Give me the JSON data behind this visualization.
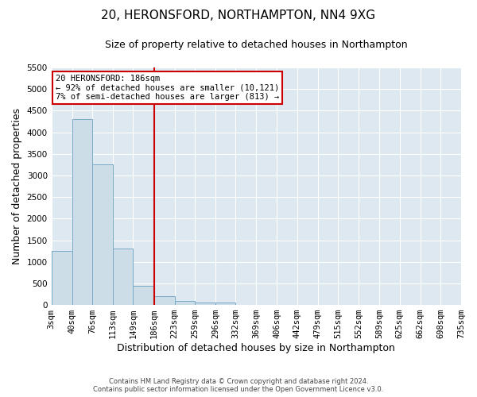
{
  "title": "20, HERONSFORD, NORTHAMPTON, NN4 9XG",
  "subtitle": "Size of property relative to detached houses in Northampton",
  "xlabel": "Distribution of detached houses by size in Northampton",
  "ylabel": "Number of detached properties",
  "footer_line1": "Contains HM Land Registry data © Crown copyright and database right 2024.",
  "footer_line2": "Contains public sector information licensed under the Open Government Licence v3.0.",
  "bin_edges": [
    3,
    40,
    76,
    113,
    149,
    186,
    223,
    259,
    296,
    332,
    369,
    406,
    442,
    479,
    515,
    552,
    589,
    625,
    662,
    698,
    735
  ],
  "bar_heights": [
    1250,
    4300,
    3250,
    1300,
    450,
    200,
    100,
    50,
    50,
    0,
    0,
    0,
    0,
    0,
    0,
    0,
    0,
    0,
    0,
    0
  ],
  "bar_color": "#ccdde8",
  "bar_edge_color": "#7aaac8",
  "vline_x": 186,
  "vline_color": "#cc0000",
  "annotation_line1": "20 HERONSFORD: 186sqm",
  "annotation_line2": "← 92% of detached houses are smaller (10,121)",
  "annotation_line3": "7% of semi-detached houses are larger (813) →",
  "annotation_box_color": "#cc0000",
  "ylim": [
    0,
    5500
  ],
  "yticks": [
    0,
    500,
    1000,
    1500,
    2000,
    2500,
    3000,
    3500,
    4000,
    4500,
    5000,
    5500
  ],
  "plot_bg_color": "#dde8f0",
  "title_fontsize": 11,
  "subtitle_fontsize": 9,
  "axis_label_fontsize": 9,
  "tick_fontsize": 7.5,
  "grid_color": "#ffffff"
}
